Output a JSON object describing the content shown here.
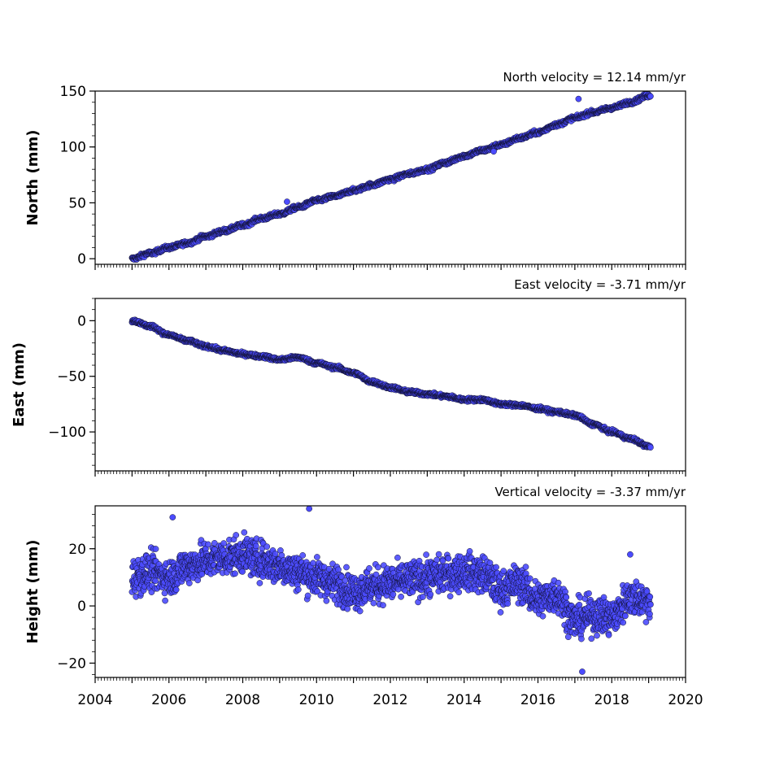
{
  "chart_data": [
    {
      "type": "scatter",
      "title": "North velocity = 12.14 mm/yr",
      "xlabel": "",
      "ylabel": "North (mm)",
      "xlim": [
        2004,
        2020
      ],
      "ylim": [
        -5,
        150
      ],
      "yticks": [
        0,
        50,
        100,
        150
      ],
      "ytick_labels": [
        "0",
        "50",
        "100",
        "150"
      ],
      "grid": false,
      "marker_color": "#4b4bff",
      "marker_edge": "#111133",
      "series": [
        {
          "x": [
            2005.0,
            2005.5,
            2006.0,
            2006.5,
            2007.0,
            2007.5,
            2008.0,
            2008.5,
            2009.0,
            2009.5,
            2010.0,
            2010.5,
            2011.0,
            2011.5,
            2012.0,
            2012.5,
            2013.0,
            2013.5,
            2014.0,
            2014.5,
            2015.0,
            2015.5,
            2016.0,
            2016.5,
            2017.0,
            2017.5,
            2018.0,
            2018.5,
            2019.0
          ],
          "y": [
            0,
            5,
            10,
            14,
            20,
            25,
            30,
            36,
            40,
            46,
            52,
            56,
            61,
            66,
            71,
            76,
            80,
            86,
            92,
            97,
            102,
            108,
            113,
            120,
            126,
            131,
            135,
            140,
            146
          ],
          "outliers": [
            [
              2009.2,
              51
            ],
            [
              2014.8,
              96
            ],
            [
              2017.1,
              143
            ]
          ]
        }
      ]
    },
    {
      "type": "scatter",
      "title": "East velocity = -3.71 mm/yr",
      "xlabel": "",
      "ylabel": "East (mm)",
      "xlim": [
        2004,
        2020
      ],
      "ylim": [
        -135,
        20
      ],
      "yticks": [
        0,
        -50,
        -100
      ],
      "ytick_labels": [
        "0",
        "−50",
        "−100"
      ],
      "grid": false,
      "marker_color": "#4b4bff",
      "marker_edge": "#111133",
      "series": [
        {
          "x": [
            2005.0,
            2005.5,
            2006.0,
            2006.5,
            2007.0,
            2007.5,
            2008.0,
            2008.5,
            2009.0,
            2009.5,
            2010.0,
            2010.5,
            2011.0,
            2011.5,
            2012.0,
            2012.5,
            2013.0,
            2013.5,
            2014.0,
            2014.5,
            2015.0,
            2015.5,
            2016.0,
            2016.5,
            2017.0,
            2017.5,
            2018.0,
            2018.5,
            2019.0
          ],
          "y": [
            0,
            -5,
            -13,
            -18,
            -23,
            -27,
            -30,
            -32,
            -35,
            -33,
            -38,
            -42,
            -47,
            -55,
            -60,
            -64,
            -66,
            -68,
            -71,
            -71,
            -75,
            -76,
            -79,
            -82,
            -85,
            -93,
            -100,
            -106,
            -113
          ]
        }
      ]
    },
    {
      "type": "scatter",
      "title": "Vertical velocity = -3.37 mm/yr",
      "xlabel": "",
      "ylabel": "Height (mm)",
      "xlim": [
        2004,
        2020
      ],
      "ylim": [
        -25,
        35
      ],
      "yticks": [
        20,
        0,
        -20
      ],
      "ytick_labels": [
        "20",
        "0",
        "−20"
      ],
      "xticks": [
        2004,
        2006,
        2008,
        2010,
        2012,
        2014,
        2016,
        2018,
        2020
      ],
      "xtick_labels": [
        "2004",
        "2006",
        "2008",
        "2010",
        "2012",
        "2014",
        "2016",
        "2018",
        "2020"
      ],
      "grid": false,
      "marker_color": "#4b4bff",
      "marker_edge": "#111133",
      "series": [
        {
          "x": [
            2005.0,
            2005.5,
            2006.0,
            2006.5,
            2007.0,
            2007.5,
            2008.0,
            2008.5,
            2009.0,
            2009.5,
            2010.0,
            2010.5,
            2011.0,
            2011.5,
            2012.0,
            2012.5,
            2013.0,
            2013.5,
            2014.0,
            2014.5,
            2015.0,
            2015.5,
            2016.0,
            2016.5,
            2017.0,
            2017.5,
            2018.0,
            2018.5,
            2019.0
          ],
          "y": [
            10,
            12,
            10,
            14,
            16,
            17,
            18,
            16,
            14,
            12,
            10,
            8,
            5,
            7,
            8,
            9,
            10,
            11,
            12,
            11,
            6,
            8,
            2,
            4,
            -5,
            -3,
            -4,
            3,
            2
          ],
          "spread": 7,
          "outliers": [
            [
              2009.8,
              34
            ],
            [
              2006.1,
              31
            ],
            [
              2017.2,
              -23
            ],
            [
              2018.5,
              18
            ]
          ]
        }
      ]
    }
  ]
}
